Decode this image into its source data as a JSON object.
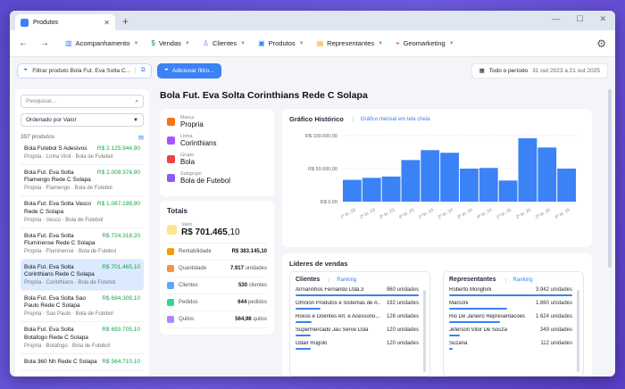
{
  "browser": {
    "tab_title": "Produtos"
  },
  "nav": {
    "items": [
      {
        "label": "Acompanhamento",
        "icon": "columns-icon"
      },
      {
        "label": "Vendas",
        "icon": "dollar-icon"
      },
      {
        "label": "Clientes",
        "icon": "user-icon"
      },
      {
        "label": "Produtos",
        "icon": "package-icon"
      },
      {
        "label": "Representantes",
        "icon": "briefcase-icon"
      },
      {
        "label": "Geomarketing",
        "icon": "map-pin-icon"
      }
    ]
  },
  "filters": {
    "active_filter": "Filtrar produto Bola Fut. Eva Solta C...",
    "add_filter_label": "Adicionar filtro...",
    "period_label": "Todo o período",
    "period_range": "31 out 2023 a 21 out 2025"
  },
  "sidebar": {
    "search_placeholder": "Pesquisar...",
    "sort_label": "Ordenado por Valor",
    "count_label": "397 produtos",
    "products": [
      {
        "name": "Bola Futebol S Adesivos",
        "value": "R$ 2.125.944,90",
        "sub": "Propria · Linha Vinil · Bola de Futebol"
      },
      {
        "name": "Bola Fut. Eva Solta Flamengo Rede C Solapa",
        "value": "R$ 2.009.374,90",
        "sub": "Propria · Flamengo · Bola de Futebol"
      },
      {
        "name": "Bola Fut. Eva Solta Vasco Rede C Solapa",
        "value": "R$ 1.087.198,90",
        "sub": "Propria · Vasco · Bola de Futebol"
      },
      {
        "name": "Bola Fut. Eva Solta Fluminense Rede C Solapa",
        "value": "R$ 724.318,20",
        "sub": "Propria · Fluminense · Bola de Futebol"
      },
      {
        "name": "Bola Fut. Eva Solta Corinthians Rede C Solapa",
        "value": "R$ 701.465,10",
        "sub": "Propria · Corinthians · Bola de Futebol"
      },
      {
        "name": "Bola Fut. Eva Solta Sao Paulo Rede C Solapa",
        "value": "R$ 694.308,10",
        "sub": "Propria · Sao Paulo · Bola de Futebol"
      },
      {
        "name": "Bola Fut. Eva Solta Botafogo Rede C Solapa",
        "value": "R$ 693.705,10",
        "sub": "Propria · Botafogo · Bola de Futebol"
      },
      {
        "name": "Bola 360 Nh Rede C Solapa",
        "value": "R$ 564.710,10",
        "sub": ""
      }
    ]
  },
  "main": {
    "title": "Bola Fut. Eva Solta Corinthians Rede C  Solapa",
    "info": [
      {
        "label": "Marca",
        "value": "Propria",
        "color": "#f97316"
      },
      {
        "label": "Linha",
        "value": "Corinthians",
        "color": "#a855f7"
      },
      {
        "label": "Grupo",
        "value": "Bola",
        "color": "#ef4444"
      },
      {
        "label": "Subgrupo",
        "value": "Bola de Futebol",
        "color": "#8b5cf6"
      }
    ],
    "totais": {
      "title": "Totais",
      "valor_label": "Valor",
      "valor_main": "R$ 701.465",
      "valor_dec": ",10",
      "rows": [
        {
          "label": "Rentabilidade",
          "value": "R$ 383.145,10",
          "unit": "",
          "color": "#f59e0b"
        },
        {
          "label": "Quantidade",
          "value": "7.917",
          "unit": "unidades",
          "color": "#fb923c"
        },
        {
          "label": "Clientes",
          "value": "530",
          "unit": "clientes",
          "color": "#60a5fa"
        },
        {
          "label": "Pedidos",
          "value": "644",
          "unit": "pedidos",
          "color": "#34d399"
        },
        {
          "label": "Quilos",
          "value": "564,98",
          "unit": "quilos",
          "color": "#a78bfa"
        }
      ]
    },
    "chart_title": "Gráfico Histórico",
    "chart_link": "Gráfico mensal em tela cheia",
    "lideres_title": "Líderes de vendas",
    "clientes_title": "Clientes",
    "clientes_ranking": "Ranking",
    "representantes_title": "Representantes",
    "representantes_ranking": "Ranking",
    "clientes": [
      {
        "name": "Armarinhos Fernando Ltda.3",
        "value": "960 unidades",
        "frac": 1.0
      },
      {
        "name": "Omnion Produtos e Sistemas de A...",
        "value": "192 unidades",
        "frac": 0.2
      },
      {
        "name": "Roxos e Doentes Art. e Acessorio...",
        "value": "126 unidades",
        "frac": 0.13
      },
      {
        "name": "Supermercado Jau Serve Ltda",
        "value": "120 unidades",
        "frac": 0.125
      },
      {
        "name": "Odair Rugolo",
        "value": "120 unidades",
        "frac": 0.125
      }
    ],
    "representantes": [
      {
        "name": "Roberto Monghini",
        "value": "3.942 unidades",
        "frac": 1.0
      },
      {
        "name": "Marconi",
        "value": "1.860 unidades",
        "frac": 0.47
      },
      {
        "name": "Rio De Janeiro Representacoes",
        "value": "1.624 unidades",
        "frac": 0.41
      },
      {
        "name": "Jeferson Vitor De Souza",
        "value": "349 unidades",
        "frac": 0.09
      },
      {
        "name": "Suzana",
        "value": "112 unidades",
        "frac": 0.03
      }
    ]
  },
  "chart_data": {
    "type": "bar",
    "title": "Gráfico Histórico",
    "categories": [
      "1º tri. 23",
      "2º tri. 23",
      "3º tri. 23",
      "4º tri. 23",
      "1º tri. 24",
      "2º tri. 24",
      "3º tri. 24",
      "4º tri. 24",
      "1º tri. 25",
      "2º tri. 25",
      "3º tri. 25",
      "4º tri. 25"
    ],
    "values": [
      33000,
      36000,
      38000,
      63000,
      78000,
      74000,
      50000,
      51000,
      32000,
      96000,
      82000,
      50000
    ],
    "yticks": [
      "R$ 100.000,00",
      "R$ 50.000,00",
      "R$ 0,00"
    ],
    "ylim": [
      0,
      100000
    ],
    "color": "#3b82f6"
  }
}
